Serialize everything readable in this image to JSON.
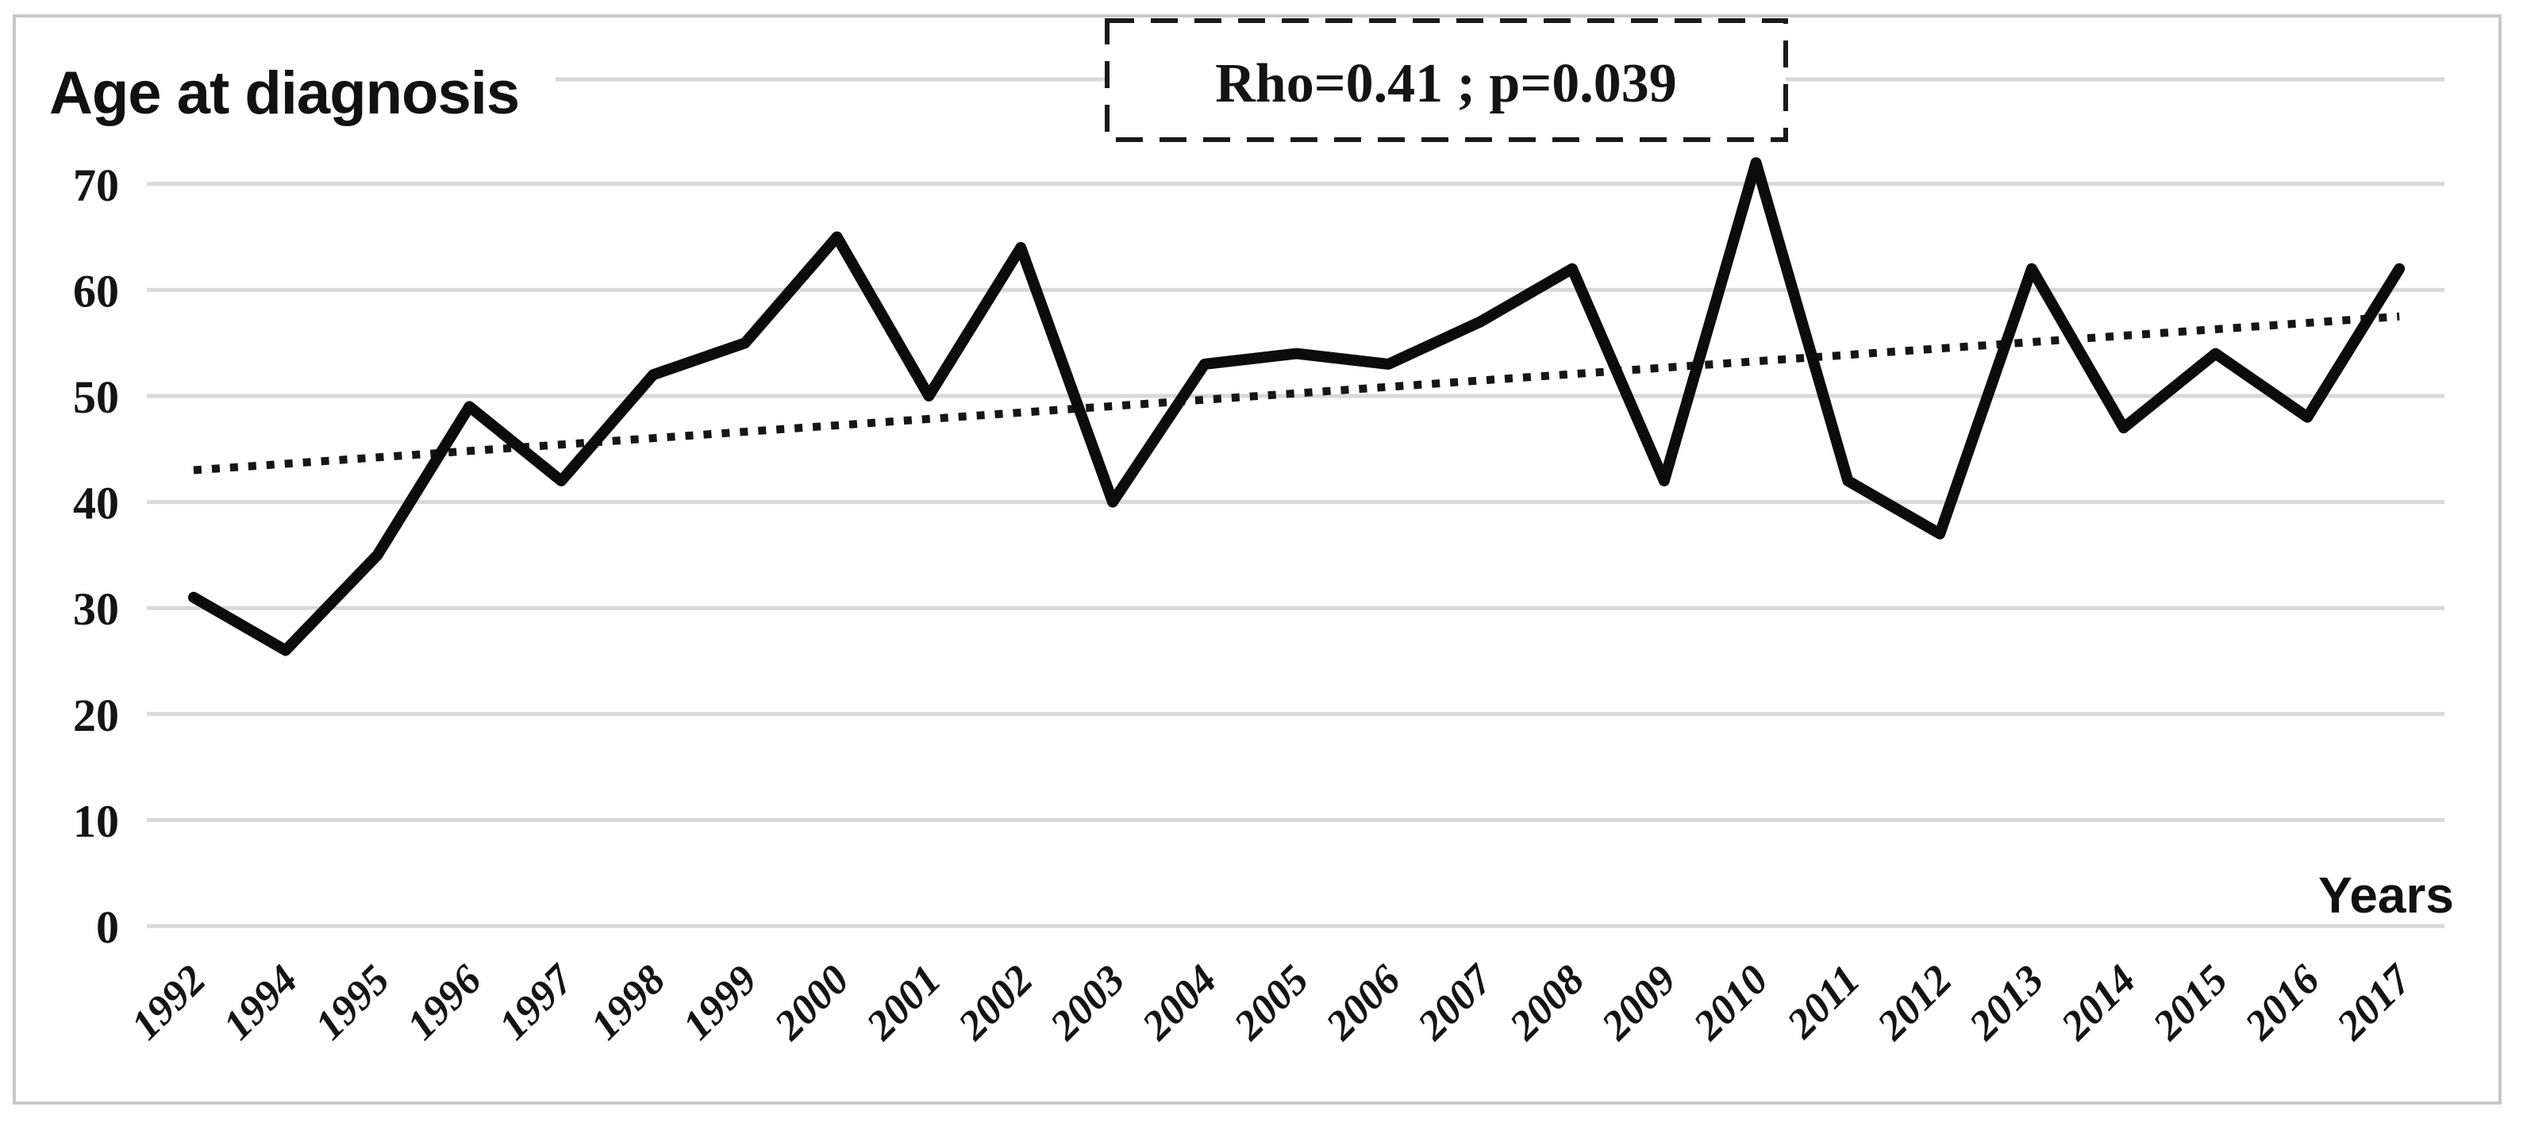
{
  "figure": {
    "kind": "statistical line chart figure"
  },
  "chart_data": {
    "type": "line",
    "title": "Age at diagnosis",
    "xlabel": "Years",
    "ylabel": "Age at diagnosis",
    "annotation": {
      "text": "Rho=0.41 ; p=0.039",
      "style": "dashed-box",
      "position": "top-center"
    },
    "categories": [
      "1992",
      "1994",
      "1995",
      "1996",
      "1997",
      "1998",
      "1999",
      "2000",
      "2001",
      "2002",
      "2003",
      "2004",
      "2005",
      "2006",
      "2007",
      "2008",
      "2009",
      "2010",
      "2011",
      "2012",
      "2013",
      "2014",
      "2015",
      "2016",
      "2017"
    ],
    "series": [
      {
        "name": "Age at diagnosis",
        "style": "solid",
        "values": [
          31,
          26,
          35,
          49,
          42,
          52,
          55,
          65,
          50,
          64,
          40,
          53,
          54,
          53,
          57,
          62,
          42,
          72,
          42,
          37,
          62,
          47,
          54,
          48,
          62
        ]
      },
      {
        "name": "Linear trend",
        "style": "dotted",
        "trend": {
          "start": 43,
          "end": 57.5
        }
      }
    ],
    "yticks": [
      0,
      10,
      20,
      30,
      40,
      50,
      60,
      70
    ],
    "ylim": [
      0,
      75
    ],
    "grid": true,
    "legend": "none"
  },
  "colors": {
    "series_line": "#0c0c0c",
    "trend_line": "#161616",
    "grid_line": "#d8d8d8",
    "plot_border": "#c9c9c9",
    "annotation_border": "#1a1a1a",
    "text": "#141414",
    "background": "#fefefe"
  }
}
